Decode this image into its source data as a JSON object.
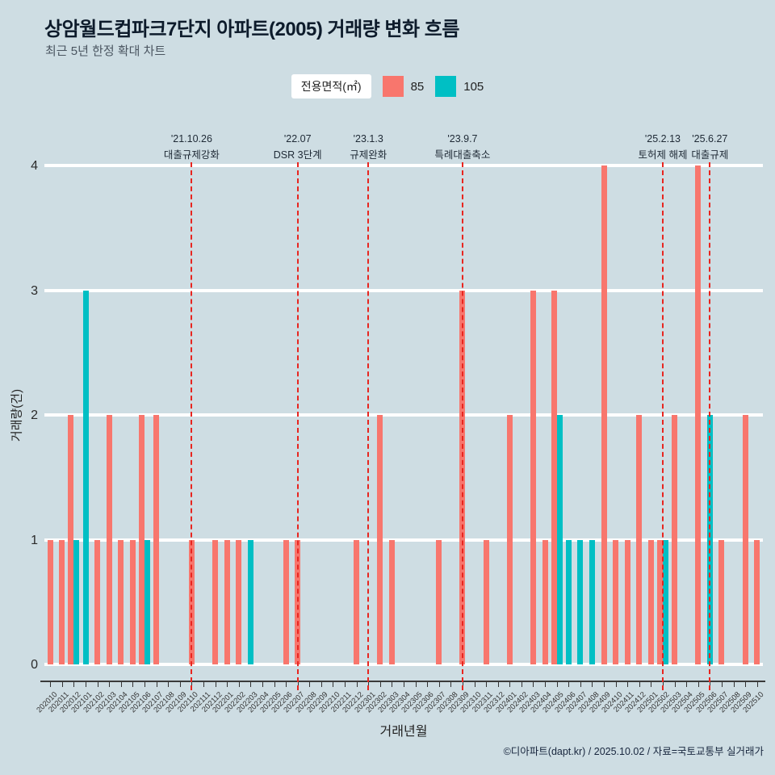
{
  "page": {
    "title": "상암월드컵파크7단지 아파트(2005) 거래량 변화 흐름",
    "subtitle": "최근 5년 한정 확대 차트",
    "footer": "©디아파트(dapt.kr) / 2025.10.02 / 자료=국토교통부 실거래가"
  },
  "legend": {
    "title": "전용면적(㎡)",
    "items": [
      {
        "label": "85",
        "color": "#f8766d"
      },
      {
        "label": "105",
        "color": "#00bfc4"
      }
    ]
  },
  "chart_data": {
    "type": "bar",
    "title": "상암월드컵파크7단지 아파트(2005) 거래량 변화 흐름",
    "subtitle": "최근 5년 한정 확대 차트",
    "xlabel": "거래년월",
    "ylabel": "거래량(건)",
    "ylim": [
      0,
      4
    ],
    "yticks": [
      0,
      1,
      2,
      3,
      4
    ],
    "grid": true,
    "legend_position": "top",
    "legend_title": "전용면적(㎡)",
    "gridline_color": "#ffffff",
    "event_line_color": "#e8251f",
    "categories": [
      "202010",
      "202011",
      "202012",
      "202101",
      "202102",
      "202103",
      "202104",
      "202105",
      "202106",
      "202107",
      "202108",
      "202109",
      "202110",
      "202111",
      "202112",
      "202201",
      "202202",
      "202203",
      "202204",
      "202205",
      "202206",
      "202207",
      "202208",
      "202209",
      "202210",
      "202211",
      "202212",
      "202301",
      "202302",
      "202303",
      "202304",
      "202305",
      "202306",
      "202307",
      "202308",
      "202309",
      "202310",
      "202311",
      "202312",
      "202401",
      "202402",
      "202403",
      "202404",
      "202405",
      "202406",
      "202407",
      "202408",
      "202409",
      "202410",
      "202411",
      "202412",
      "202501",
      "202502",
      "202503",
      "202504",
      "202505",
      "202506",
      "202507",
      "202508",
      "202509",
      "202510"
    ],
    "series": [
      {
        "name": "85",
        "color": "#f8766d",
        "values": [
          1,
          1,
          2,
          0,
          1,
          2,
          1,
          1,
          2,
          2,
          0,
          0,
          1,
          0,
          1,
          1,
          1,
          0,
          0,
          0,
          1,
          1,
          0,
          0,
          0,
          0,
          1,
          0,
          2,
          1,
          0,
          0,
          0,
          1,
          0,
          3,
          0,
          1,
          0,
          2,
          0,
          3,
          1,
          3,
          0,
          0,
          0,
          4,
          1,
          1,
          2,
          1,
          1,
          2,
          0,
          4,
          0,
          1,
          0,
          2,
          1
        ]
      },
      {
        "name": "105",
        "color": "#00bfc4",
        "values": [
          0,
          0,
          1,
          3,
          0,
          0,
          0,
          0,
          1,
          0,
          0,
          0,
          0,
          0,
          0,
          0,
          0,
          1,
          0,
          0,
          0,
          0,
          0,
          0,
          0,
          0,
          0,
          0,
          0,
          0,
          0,
          0,
          0,
          0,
          0,
          0,
          0,
          0,
          0,
          0,
          0,
          0,
          0,
          2,
          1,
          1,
          1,
          0,
          0,
          0,
          0,
          0,
          1,
          0,
          0,
          0,
          2,
          0,
          0,
          0,
          0
        ]
      }
    ],
    "events": [
      {
        "date": "'21.10.26",
        "label": "대출규제강화",
        "month": "202110"
      },
      {
        "date": "'22.07",
        "label": "DSR 3단계",
        "month": "202207"
      },
      {
        "date": "'23.1.3",
        "label": "규제완화",
        "month": "202301"
      },
      {
        "date": "'23.9.7",
        "label": "특례대출축소",
        "month": "202309"
      },
      {
        "date": "'25.2.13",
        "label": "토허제 해제",
        "month": "202502"
      },
      {
        "date": "'25.6.27",
        "label": "대출규제",
        "month": "202506"
      }
    ]
  }
}
